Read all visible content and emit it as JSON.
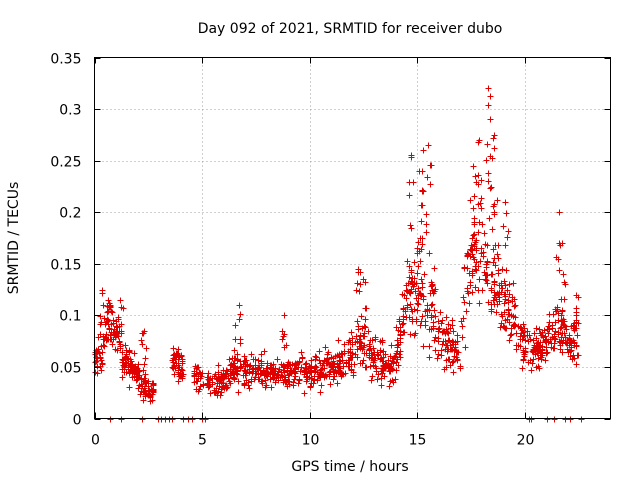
{
  "chart_data": {
    "type": "scatter",
    "title": "Day 092 of 2021, SRMTID for receiver dubo",
    "xlabel": "GPS time / hours",
    "ylabel": "SRMTID / TECUs",
    "xlim": [
      0,
      24
    ],
    "ylim": [
      0,
      0.35
    ],
    "xticks": [
      0,
      5,
      10,
      15,
      20
    ],
    "xtick_labels": [
      "0",
      "5",
      "10",
      "15",
      "20"
    ],
    "yticks": [
      0,
      0.05,
      0.1,
      0.15,
      0.2,
      0.25,
      0.3,
      0.35
    ],
    "ytick_labels": [
      "0",
      "0.05",
      "0.1",
      "0.15",
      "0.2",
      "0.25",
      "0.3",
      "0.35"
    ],
    "grid": true,
    "marker": "plus",
    "color": "#e00000",
    "series": [
      {
        "name": "SRMTID",
        "trend": [
          [
            0.0,
            0.06,
            0.015
          ],
          [
            0.3,
            0.065,
            0.02
          ],
          [
            0.6,
            0.09,
            0.025
          ],
          [
            1.0,
            0.08,
            0.02
          ],
          [
            1.4,
            0.055,
            0.02
          ],
          [
            1.8,
            0.045,
            0.015
          ],
          [
            2.3,
            0.035,
            0.015
          ],
          [
            2.6,
            0.025,
            0.01
          ],
          [
            3.7,
            0.055,
            0.015
          ],
          [
            4.8,
            0.04,
            0.012
          ],
          [
            5.5,
            0.035,
            0.012
          ],
          [
            6.5,
            0.045,
            0.015
          ],
          [
            7.5,
            0.045,
            0.015
          ],
          [
            8.5,
            0.045,
            0.015
          ],
          [
            9.5,
            0.045,
            0.015
          ],
          [
            10.5,
            0.045,
            0.018
          ],
          [
            11.5,
            0.055,
            0.02
          ],
          [
            12.3,
            0.075,
            0.025
          ],
          [
            13.0,
            0.06,
            0.02
          ],
          [
            13.8,
            0.05,
            0.02
          ],
          [
            14.5,
            0.11,
            0.04
          ],
          [
            15.0,
            0.13,
            0.05
          ],
          [
            15.5,
            0.12,
            0.05
          ],
          [
            16.0,
            0.08,
            0.025
          ],
          [
            16.5,
            0.07,
            0.025
          ],
          [
            17.0,
            0.07,
            0.03
          ],
          [
            17.5,
            0.17,
            0.05
          ],
          [
            18.0,
            0.15,
            0.05
          ],
          [
            18.5,
            0.14,
            0.04
          ],
          [
            19.0,
            0.12,
            0.035
          ],
          [
            19.5,
            0.1,
            0.03
          ],
          [
            20.0,
            0.07,
            0.02
          ],
          [
            20.5,
            0.07,
            0.02
          ],
          [
            21.0,
            0.075,
            0.02
          ],
          [
            21.5,
            0.09,
            0.03
          ],
          [
            22.0,
            0.075,
            0.02
          ],
          [
            22.5,
            0.07,
            0.02
          ]
        ],
        "gaps": [
          [
            2.75,
            3.6
          ],
          [
            4.1,
            4.6
          ],
          [
            5.05,
            5.2
          ],
          [
            22.7,
            24.0
          ]
        ],
        "zero_points": [
          0.7,
          1.25,
          2.2,
          2.95,
          3.1,
          3.3,
          3.45,
          3.6,
          4.1,
          4.35,
          4.55,
          5.0,
          5.15,
          20.2,
          20.3,
          21.05,
          21.35,
          21.9,
          22.1,
          22.65
        ],
        "spikes": [
          [
            0.35,
            0.125
          ],
          [
            0.65,
            0.115
          ],
          [
            1.2,
            0.115
          ],
          [
            2.3,
            0.085
          ],
          [
            6.7,
            0.11
          ],
          [
            8.8,
            0.1
          ],
          [
            12.25,
            0.145
          ],
          [
            12.5,
            0.135
          ],
          [
            14.7,
            0.255
          ],
          [
            15.1,
            0.24
          ],
          [
            15.3,
            0.26
          ],
          [
            15.5,
            0.265
          ],
          [
            17.6,
            0.245
          ],
          [
            17.9,
            0.27
          ],
          [
            18.3,
            0.32
          ],
          [
            18.4,
            0.29
          ],
          [
            18.6,
            0.275
          ],
          [
            19.1,
            0.21
          ],
          [
            21.6,
            0.2
          ],
          [
            21.8,
            0.14
          ],
          [
            22.4,
            0.12
          ]
        ],
        "n_points": 1500
      }
    ]
  }
}
